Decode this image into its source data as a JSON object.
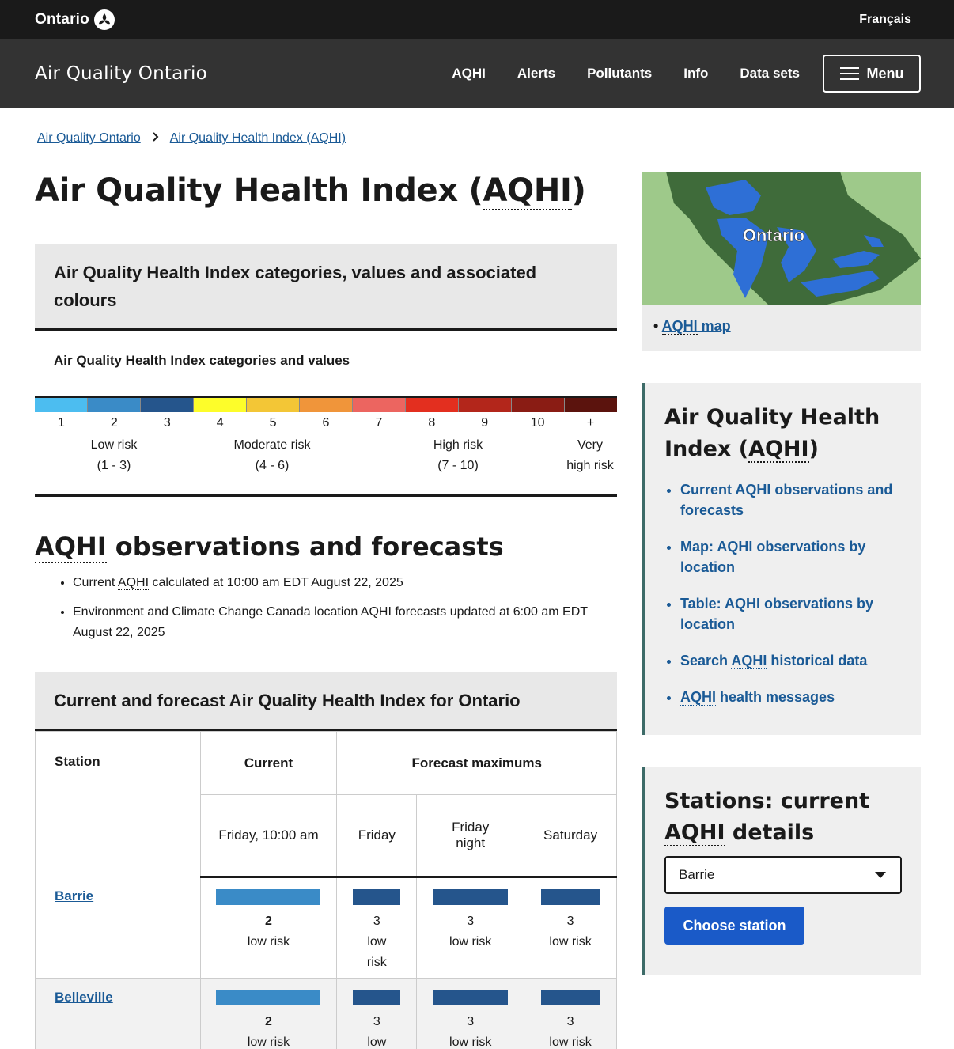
{
  "topbar": {
    "brand": "Ontario",
    "language_link": "Français"
  },
  "header": {
    "title": "Air Quality Ontario",
    "nav": [
      "AQHI",
      "Alerts",
      "Pollutants",
      "Info",
      "Data sets"
    ],
    "menu_label": "Menu"
  },
  "breadcrumb": [
    "Air Quality Ontario",
    "Air Quality Health Index (AQHI)"
  ],
  "page": {
    "title_prefix": "Air Quality Health Index (",
    "title_abbr": "AQHI",
    "title_suffix": ")"
  },
  "categories_box": {
    "heading": "Air Quality Health Index categories, values and associated colours",
    "subheading": "Air Quality Health Index categories and values",
    "scale_colors": [
      "#4cbdf0",
      "#3a8bc7",
      "#25558c",
      "#fdfd2a",
      "#f3c636",
      "#f0953a",
      "#ec6560",
      "#e32f1f",
      "#b3261b",
      "#8a1c14",
      "#5b130d"
    ],
    "scale_numbers": [
      "1",
      "2",
      "3",
      "4",
      "5",
      "6",
      "7",
      "8",
      "9",
      "10",
      "+"
    ],
    "categories": [
      {
        "name": "Low risk",
        "range": "(1 - 3)"
      },
      {
        "name": "Moderate risk",
        "range": "(4 - 6)"
      },
      {
        "name": "High risk",
        "range": "(7 - 10)"
      },
      {
        "name": "Very",
        "range": "high risk"
      }
    ]
  },
  "observations": {
    "heading_abbr": "AQHI",
    "heading_rest": " observations and forecasts",
    "items": [
      {
        "pre": "Current ",
        "abbr": "AQHI",
        "post": " calculated at 10:00 am EDT August 22, 2025"
      },
      {
        "pre": "Environment and Climate Change Canada location ",
        "abbr": "AQHI",
        "post": " forecasts updated at 6:00 am EDT August 22, 2025"
      }
    ]
  },
  "table": {
    "caption": "Current and forecast Air Quality Health Index for Ontario",
    "headers": {
      "station": "Station",
      "current": "Current",
      "forecast": "Forecast maximums"
    },
    "subheaders": [
      "Friday, 10:00 am",
      "Friday",
      "Friday night",
      "Saturday"
    ],
    "rows": [
      {
        "station": "Barrie",
        "cells": [
          {
            "value": "2",
            "risk": "low risk",
            "color": "#3a8bc7"
          },
          {
            "value": "3",
            "risk": "low risk",
            "color": "#25558c"
          },
          {
            "value": "3",
            "risk": "low risk",
            "color": "#25558c"
          },
          {
            "value": "3",
            "risk": "low risk",
            "color": "#25558c"
          }
        ]
      },
      {
        "station": "Belleville",
        "cells": [
          {
            "value": "2",
            "risk": "low risk",
            "color": "#3a8bc7"
          },
          {
            "value": "3",
            "risk": "low risk",
            "color": "#25558c"
          },
          {
            "value": "3",
            "risk": "low risk",
            "color": "#25558c"
          },
          {
            "value": "3",
            "risk": "low risk",
            "color": "#25558c"
          }
        ]
      }
    ]
  },
  "sidebar": {
    "map_label": "Ontario",
    "map_link_abbr": "AQHI",
    "map_link_rest": " map",
    "aqhi_card": {
      "title_line1": "Air Quality Health",
      "title_line2_pre": "Index (",
      "title_abbr": "AQHI",
      "title_line2_post": ")",
      "links": [
        {
          "pre": "Current ",
          "abbr": "AQHI",
          "post": " observations and forecasts"
        },
        {
          "pre": "Map: ",
          "abbr": "AQHI",
          "post": " observations by location"
        },
        {
          "pre": "Table: ",
          "abbr": "AQHI",
          "post": " observations by location"
        },
        {
          "pre": "Search ",
          "abbr": "AQHI",
          "post": " historical data"
        },
        {
          "pre": "",
          "abbr": "AQHI",
          "post": " health messages"
        }
      ]
    },
    "station_card": {
      "title_line1": "Stations: current",
      "title_abbr": "AQHI",
      "title_line2_post": " details",
      "selected_station": "Barrie",
      "button_label": "Choose station"
    }
  }
}
